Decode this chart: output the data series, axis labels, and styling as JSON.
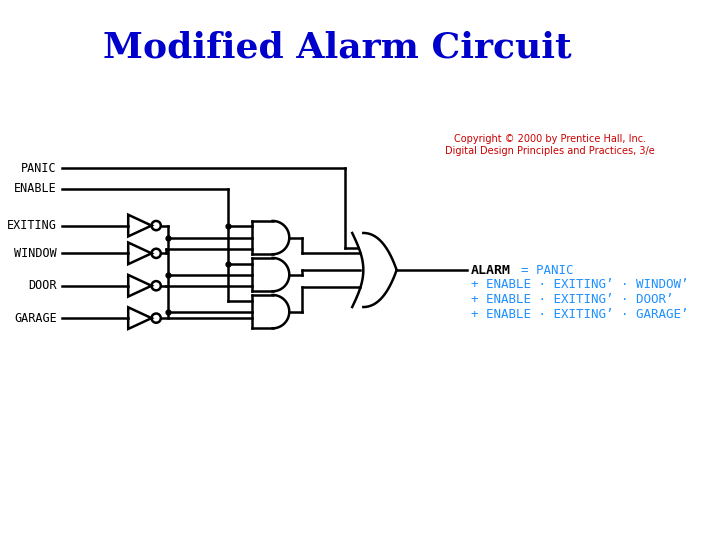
{
  "title": "Modified Alarm Circuit",
  "title_color": "#0000CC",
  "title_fontsize": 26,
  "title_weight": "bold",
  "bg_color": "#ffffff",
  "input_labels": [
    "PANIC",
    "ENABLE",
    "EXITING",
    "WINDOW",
    "DOOR",
    "GARAGE"
  ],
  "alarm_label": "ALARM",
  "equation_lines": [
    "= PANIC",
    "+ ENABLE · EXITING’ · WINDOW’",
    "+ ENABLE · EXITING’ · DOOR’",
    "+ ENABLE · EXITING’ · GARAGE’"
  ],
  "eq_color": "#1E90FF",
  "copyright_text": "Copyright © 2000 by Prentice Hall, Inc.\nDigital Design Principles and Practices, 3/e",
  "copyright_color": "#CC0000",
  "copyright_fontsize": 7
}
